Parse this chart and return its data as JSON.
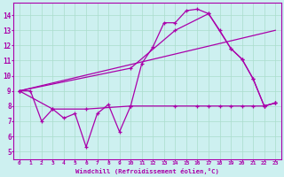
{
  "background_color": "#cdf0f0",
  "grid_color": "#aaddcc",
  "line_color": "#aa00aa",
  "xlabel": "Windchill (Refroidissement éolien,°C)",
  "xlim": [
    -0.5,
    23.5
  ],
  "ylim": [
    4.5,
    14.8
  ],
  "yticks": [
    5,
    6,
    7,
    8,
    9,
    10,
    11,
    12,
    13,
    14
  ],
  "xticks": [
    0,
    1,
    2,
    3,
    4,
    5,
    6,
    7,
    8,
    9,
    10,
    11,
    12,
    13,
    14,
    15,
    16,
    17,
    18,
    19,
    20,
    21,
    22,
    23
  ],
  "line1_x": [
    0,
    1,
    2,
    3,
    4,
    5,
    6,
    7,
    8,
    9,
    10,
    11,
    12,
    13,
    14,
    15,
    16,
    17,
    18,
    19,
    20,
    21,
    22,
    23
  ],
  "line1_y": [
    9.0,
    9.0,
    7.0,
    7.8,
    7.2,
    7.5,
    5.3,
    7.5,
    8.1,
    6.3,
    8.0,
    10.8,
    11.9,
    13.5,
    13.5,
    14.3,
    14.4,
    14.1,
    13.0,
    11.8,
    11.1,
    9.8,
    8.0,
    8.2
  ],
  "line2_x": [
    0,
    10,
    14,
    17,
    19,
    20,
    21,
    22,
    23
  ],
  "line2_y": [
    9.0,
    10.5,
    13.0,
    14.1,
    11.8,
    11.1,
    9.8,
    8.0,
    8.2
  ],
  "line3_x": [
    0,
    3,
    6,
    10,
    14,
    16,
    17,
    18,
    19,
    20,
    21,
    22,
    23
  ],
  "line3_y": [
    9.0,
    7.8,
    7.8,
    8.0,
    8.0,
    8.0,
    8.0,
    8.0,
    8.0,
    8.0,
    8.0,
    8.0,
    8.2
  ],
  "line4_x": [
    0,
    23
  ],
  "line4_y": [
    9.0,
    13.0
  ]
}
